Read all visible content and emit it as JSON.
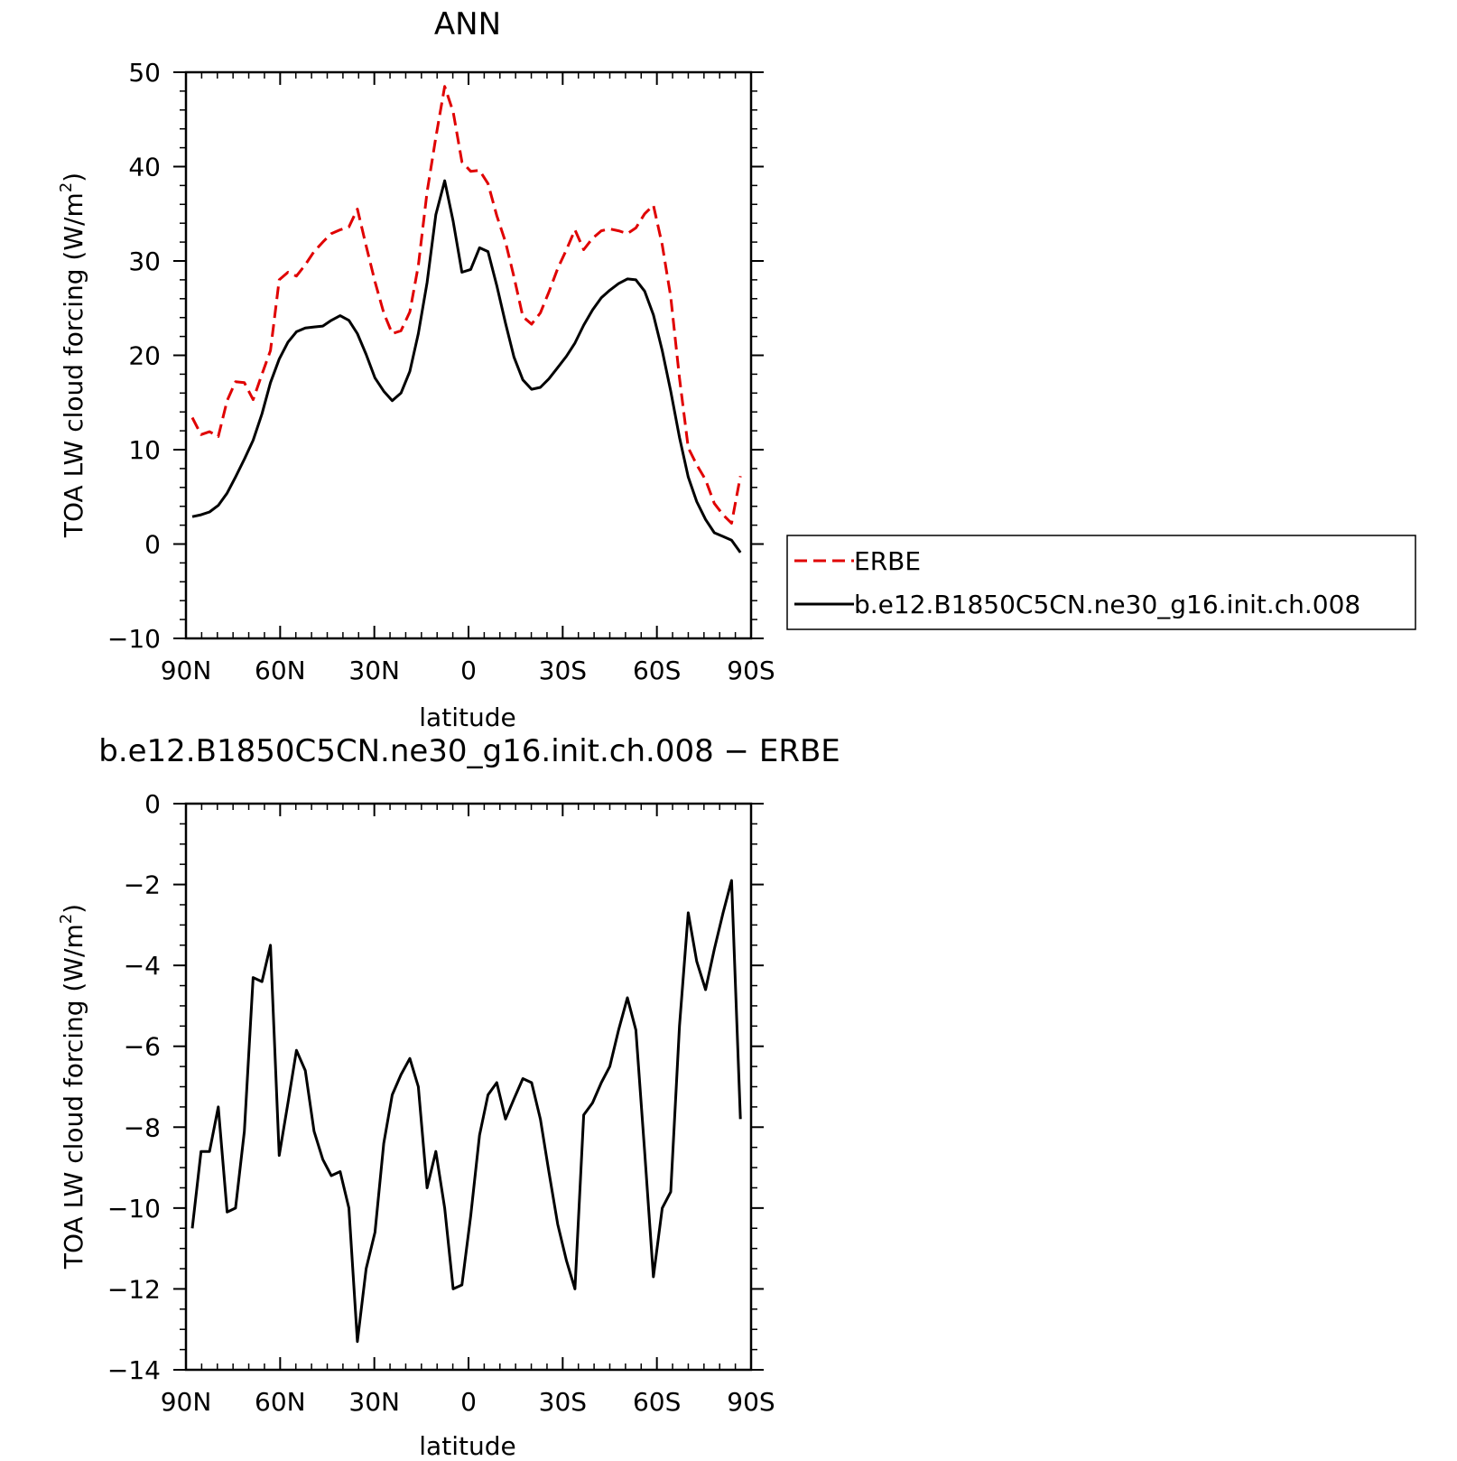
{
  "chart_data": [
    {
      "type": "line",
      "title": "ANN",
      "xlabel": "latitude",
      "ylabel": "TOA LW cloud forcing (W/m²)",
      "ylabel_prefix": "TOA LW cloud forcing (W/m",
      "ylabel_sup": "2",
      "ylabel_suffix": ")",
      "xlim": [
        90,
        -90
      ],
      "ylim": [
        -10,
        50
      ],
      "xticks": [
        {
          "value": 90,
          "label": "90N"
        },
        {
          "value": 60,
          "label": "60N"
        },
        {
          "value": 30,
          "label": "30N"
        },
        {
          "value": 0,
          "label": "0"
        },
        {
          "value": -30,
          "label": "30S"
        },
        {
          "value": -60,
          "label": "60S"
        },
        {
          "value": -90,
          "label": "90S"
        }
      ],
      "yticks": [
        {
          "value": 50,
          "label": "50"
        },
        {
          "value": 40,
          "label": "40"
        },
        {
          "value": 30,
          "label": "30"
        },
        {
          "value": 20,
          "label": "20"
        },
        {
          "value": 10,
          "label": "10"
        },
        {
          "value": 0,
          "label": "0"
        },
        {
          "value": -10,
          "label": "−10"
        }
      ],
      "legend": {
        "placement": "right",
        "entries": [
          {
            "label": "ERBE",
            "series": 0
          },
          {
            "label": "b.e12.B1850C5CN.ne30_g16.init.ch.008",
            "series": 1
          }
        ]
      },
      "series": [
        {
          "name": "ERBE",
          "color": "#e00000",
          "dash": "dashed",
          "x": [
            88,
            85.2,
            82.5,
            79.7,
            76.9,
            74.2,
            71.4,
            68.6,
            65.8,
            63.1,
            60.3,
            57.5,
            54.8,
            52,
            49.2,
            46.4,
            43.7,
            40.9,
            38.1,
            35.4,
            32.6,
            29.8,
            27,
            24.3,
            21.5,
            18.7,
            16,
            13.2,
            10.4,
            7.6,
            4.9,
            2.1,
            -0.7,
            -3.5,
            -6.2,
            -9,
            -11.8,
            -14.5,
            -17.3,
            -20.1,
            -22.9,
            -25.6,
            -28.4,
            -31.2,
            -33.9,
            -36.7,
            -39.5,
            -42.3,
            -45,
            -47.8,
            -50.6,
            -53.3,
            -56.1,
            -58.9,
            -61.7,
            -64.4,
            -67.2,
            -70,
            -72.7,
            -75.5,
            -78.3,
            -81.1,
            -83.8,
            -86.6,
            -88
          ],
          "y": [
            13.4,
            11.6,
            11.9,
            11.4,
            15.2,
            17.2,
            17.1,
            15.3,
            18,
            20.5,
            28,
            28.8,
            28.4,
            29.6,
            31,
            32,
            32.9,
            33.3,
            33.6,
            35.5,
            31.6,
            27.8,
            24.5,
            22.3,
            22.6,
            24.6,
            29.5,
            37.3,
            43.1,
            48.5,
            45.8,
            40.5,
            39.5,
            39.6,
            38.2,
            34.8,
            32,
            28.3,
            24.1,
            23.3,
            24.5,
            26.7,
            29.2,
            31.2,
            33.3,
            31.2,
            32.4,
            33.2,
            33.4,
            33.2,
            32.9,
            33.5,
            35,
            35.9,
            31.7,
            26.2,
            17.6,
            10.2,
            8.4,
            6.8,
            4.3,
            3.1,
            2.2,
            7.2,
            null
          ]
        },
        {
          "name": "b.e12.B1850C5CN.ne30_g16.init.ch.008",
          "color": "#000000",
          "dash": "solid",
          "x": [
            88,
            85.2,
            82.5,
            79.7,
            76.9,
            74.2,
            71.4,
            68.6,
            65.8,
            63.1,
            60.3,
            57.5,
            54.8,
            52,
            49.2,
            46.4,
            43.7,
            40.9,
            38.1,
            35.4,
            32.6,
            29.8,
            27,
            24.3,
            21.5,
            18.7,
            16,
            13.2,
            10.4,
            7.6,
            4.9,
            2.1,
            -0.7,
            -3.5,
            -6.2,
            -9,
            -11.8,
            -14.5,
            -17.3,
            -20.1,
            -22.9,
            -25.6,
            -28.4,
            -31.2,
            -33.9,
            -36.7,
            -39.5,
            -42.3,
            -45,
            -47.8,
            -50.6,
            -53.3,
            -56.1,
            -58.9,
            -61.7,
            -64.4,
            -67.2,
            -70,
            -72.7,
            -75.5,
            -78.3,
            -81.1,
            -83.8,
            -86.6,
            -88
          ],
          "y": [
            2.9,
            3.1,
            3.4,
            4.1,
            5.4,
            7.1,
            9,
            11,
            13.8,
            17.1,
            19.6,
            21.4,
            22.5,
            22.9,
            23,
            23.1,
            23.7,
            24.2,
            23.7,
            22.3,
            20.1,
            17.6,
            16.2,
            15.2,
            16,
            18.3,
            22.3,
            27.7,
            34.9,
            38.5,
            34.2,
            28.8,
            29.1,
            31.4,
            31,
            27.4,
            23.4,
            19.8,
            17.4,
            16.4,
            16.6,
            17.5,
            18.7,
            19.9,
            21.3,
            23.2,
            24.8,
            26.1,
            26.9,
            27.6,
            28.1,
            28,
            26.8,
            24.3,
            20.5,
            16.2,
            11.3,
            7.1,
            4.5,
            2.6,
            1.2,
            0.8,
            0.4,
            -0.9,
            null
          ]
        }
      ]
    },
    {
      "type": "line",
      "title": "b.e12.B1850C5CN.ne30_g16.init.ch.008 − ERBE",
      "xlabel": "latitude",
      "ylabel": "TOA LW cloud forcing (W/m²)",
      "ylabel_prefix": "TOA LW cloud forcing (W/m",
      "ylabel_sup": "2",
      "ylabel_suffix": ")",
      "xlim": [
        90,
        -90
      ],
      "ylim": [
        -14,
        0
      ],
      "xticks": [
        {
          "value": 90,
          "label": "90N"
        },
        {
          "value": 60,
          "label": "60N"
        },
        {
          "value": 30,
          "label": "30N"
        },
        {
          "value": 0,
          "label": "0"
        },
        {
          "value": -30,
          "label": "30S"
        },
        {
          "value": -60,
          "label": "60S"
        },
        {
          "value": -90,
          "label": "90S"
        }
      ],
      "yticks": [
        {
          "value": 0,
          "label": "0"
        },
        {
          "value": -2,
          "label": "−2"
        },
        {
          "value": -4,
          "label": "−4"
        },
        {
          "value": -6,
          "label": "−6"
        },
        {
          "value": -8,
          "label": "−8"
        },
        {
          "value": -10,
          "label": "−10"
        },
        {
          "value": -12,
          "label": "−12"
        },
        {
          "value": -14,
          "label": "−14"
        }
      ],
      "series": [
        {
          "color": "#000000",
          "dash": "solid",
          "x": [
            88,
            85.2,
            82.5,
            79.7,
            76.9,
            74.2,
            71.4,
            68.6,
            65.8,
            63.1,
            60.3,
            57.5,
            54.8,
            52,
            49.2,
            46.4,
            43.7,
            40.9,
            38.1,
            35.4,
            32.6,
            29.8,
            27,
            24.3,
            21.5,
            18.7,
            16,
            13.2,
            10.4,
            7.6,
            4.9,
            2.1,
            -0.7,
            -3.5,
            -6.2,
            -9,
            -11.8,
            -14.5,
            -17.3,
            -20.1,
            -22.9,
            -25.6,
            -28.4,
            -31.2,
            -33.9,
            -36.7,
            -39.5,
            -42.3,
            -45,
            -47.8,
            -50.6,
            -53.3,
            -56.1,
            -58.9,
            -61.7,
            -64.4,
            -67.2,
            -70,
            -72.7,
            -75.5,
            -78.3,
            -81.1,
            -83.8,
            -86.6,
            -88
          ],
          "y": [
            -10.5,
            -8.6,
            -8.6,
            -7.5,
            -10.1,
            -10,
            -8.1,
            -4.3,
            -4.4,
            -3.5,
            -8.7,
            -7.4,
            -6.1,
            -6.6,
            -8.1,
            -8.8,
            -9.2,
            -9.1,
            -10,
            -13.3,
            -11.5,
            -10.6,
            -8.4,
            -7.2,
            -6.7,
            -6.3,
            -7,
            -9.5,
            -8.6,
            -10,
            -12,
            -11.9,
            -10.2,
            -8.2,
            -7.2,
            -6.9,
            -7.8,
            -7.3,
            -6.8,
            -6.9,
            -7.8,
            -9.1,
            -10.4,
            -11.3,
            -12,
            -7.7,
            -7.4,
            -6.9,
            -6.5,
            -5.6,
            -4.8,
            -5.6,
            -8.6,
            -11.7,
            -10,
            -9.6,
            -5.5,
            -2.7,
            -3.9,
            -4.6,
            -3.6,
            -2.7,
            -1.9,
            -7.8,
            null
          ]
        }
      ]
    }
  ]
}
